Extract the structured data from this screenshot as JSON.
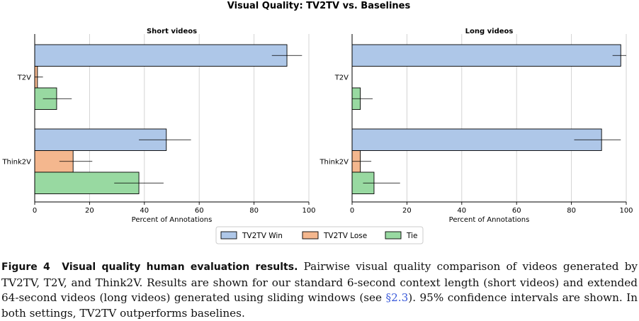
{
  "chart_data": {
    "type": "bar",
    "orientation": "horizontal",
    "title": "Visual Quality: TV2TV vs. Baselines",
    "legend": {
      "position": "bottom-center",
      "entries": [
        {
          "name": "TV2TV Win",
          "color": "#aec7e8"
        },
        {
          "name": "TV2TV Lose",
          "color": "#f4b78e"
        },
        {
          "name": "Tie",
          "color": "#98d9a1"
        }
      ]
    },
    "panels": [
      {
        "title": "Short videos",
        "xlabel": "Percent of Annotations",
        "xlim": [
          0,
          100
        ],
        "xticks": [
          "0",
          "20",
          "40",
          "60",
          "80",
          "100"
        ],
        "categories": [
          "T2V",
          "Think2V"
        ],
        "series": [
          {
            "name": "TV2TV Win",
            "values": [
              92,
              48
            ],
            "ci_low": [
              86.5,
              38
            ],
            "ci_high": [
              97.5,
              57
            ]
          },
          {
            "name": "TV2TV Lose",
            "values": [
              1,
              14
            ],
            "ci_low": [
              0,
              9
            ],
            "ci_high": [
              3,
              21
            ]
          },
          {
            "name": "Tie",
            "values": [
              8,
              38
            ],
            "ci_low": [
              3,
              29
            ],
            "ci_high": [
              13.5,
              47
            ]
          }
        ]
      },
      {
        "title": "Long videos",
        "xlabel": "Percent of Annotations",
        "xlim": [
          0,
          100
        ],
        "xticks": [
          "0",
          "20",
          "40",
          "60",
          "80",
          "100"
        ],
        "categories": [
          "T2V",
          "Think2V"
        ],
        "series": [
          {
            "name": "TV2TV Win",
            "values": [
              98,
              91
            ],
            "ci_low": [
              95,
              81
            ],
            "ci_high": [
              100,
              98
            ]
          },
          {
            "name": "TV2TV Lose",
            "values": [
              0,
              3
            ],
            "ci_low": [
              0,
              0
            ],
            "ci_high": [
              0,
              7
            ]
          },
          {
            "name": "Tie",
            "values": [
              3,
              8
            ],
            "ci_low": [
              0,
              4
            ],
            "ci_high": [
              7.5,
              17.5
            ]
          }
        ]
      }
    ]
  },
  "caption": {
    "label": "Figure 4",
    "title": "Visual quality human evaluation results.",
    "text_before_link": " Pairwise visual quality comparison of videos generated by TV2TV, T2V, and Think2V. Results are shown for our standard 6-second context length (short videos) and extended 64-second videos (long videos) generated using sliding windows (see ",
    "link": "§2.3",
    "text_after_link": "). 95% confidence intervals are shown. In both settings, TV2TV outperforms baselines."
  }
}
